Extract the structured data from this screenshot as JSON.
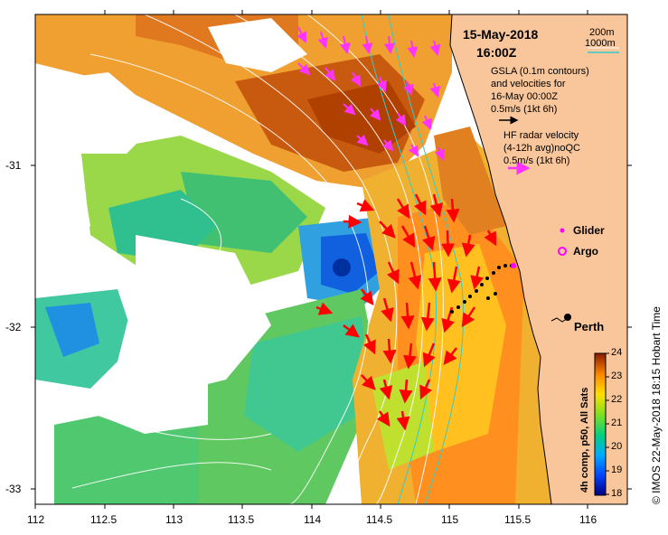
{
  "header": {
    "date": "15-May-2018",
    "time": "16:00Z"
  },
  "legend": {
    "gsla_line1": "GSLA (0.1m contours)",
    "gsla_line2": "and velocities for",
    "gsla_line3": "16-May 00:00Z",
    "gsla_scale": "0.5m/s (1kt 6h)",
    "hf_line1": "HF radar velocity",
    "hf_line2": "(4-12h avg)noQC",
    "hf_scale": "0.5m/s (1kt 6h)",
    "depth_200": "200m",
    "depth_1000": "1000m",
    "glider": "Glider",
    "argo": "Argo",
    "city": "Perth"
  },
  "axes": {
    "x_ticks": [
      "112",
      "112.5",
      "113",
      "113.5",
      "114",
      "114.5",
      "115",
      "115.5",
      "116"
    ],
    "y_ticks": [
      "-31",
      "-32",
      "-33"
    ]
  },
  "colorbar": {
    "ticks": [
      "24",
      "23",
      "22",
      "21",
      "20",
      "19",
      "18"
    ],
    "label": "4h comp, p50, All Sats"
  },
  "credit": "© IMOS 22-May-2018 18:15 Hobart Time",
  "colors": {
    "land": "#f9c59a",
    "hf_arrows": "#ff0000",
    "gsla_arrows": "#ff33ff",
    "contours": "#ffffff",
    "bathymetry": "#33cccc"
  }
}
